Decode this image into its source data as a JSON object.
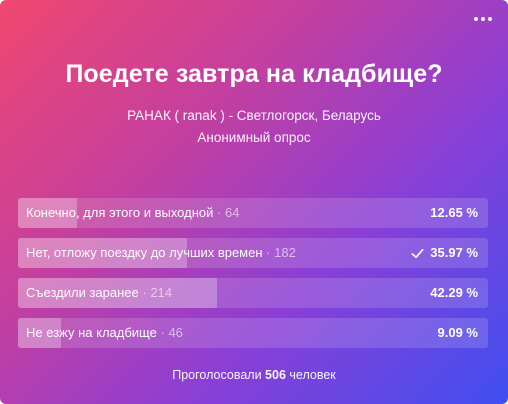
{
  "poll": {
    "question": "Поедете завтра на кладбище?",
    "author": "РАНАК ( ranak ) - Светлогорск, Беларусь",
    "kind": "Анонимный опрос",
    "options": [
      {
        "text": "Конечно, для этого и выходной",
        "separator": "·",
        "count": "64",
        "percent_label": "12.65 %",
        "share": 0.1265,
        "voted": false
      },
      {
        "text": "Нет, отложу поездку до лучших времен",
        "separator": "·",
        "count": "182",
        "percent_label": "35.97 %",
        "share": 0.3597,
        "voted": true
      },
      {
        "text": "Съездили заранее",
        "separator": "·",
        "count": "214",
        "percent_label": "42.29 %",
        "share": 0.4229,
        "voted": false
      },
      {
        "text": "Не езжу на кладбище",
        "separator": "·",
        "count": "46",
        "percent_label": "9.09 %",
        "share": 0.0909,
        "voted": false
      }
    ],
    "total_prefix": "Проголосовали",
    "total_count": "506",
    "total_suffix": "человек"
  },
  "icons": {
    "menu": "more-horizontal-icon",
    "voted": "checkmark-icon"
  },
  "colors": {
    "gradient_start": "#f0476e",
    "gradient_end": "#3f4ff0"
  }
}
